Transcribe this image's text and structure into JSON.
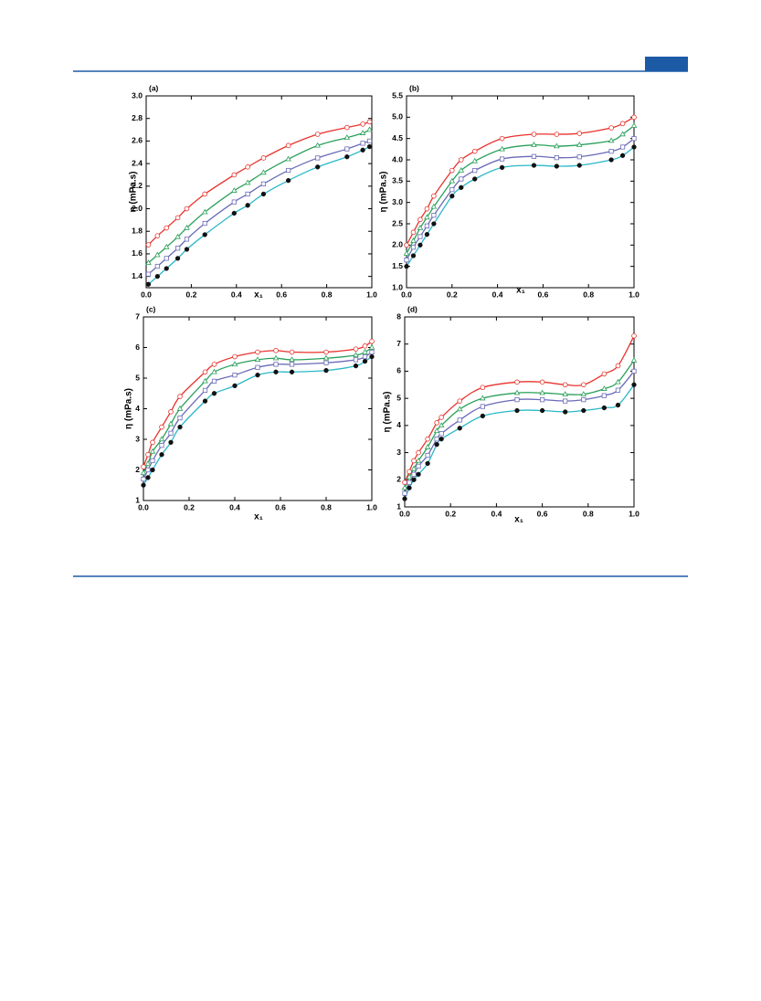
{
  "chart_data": [
    {
      "type": "line",
      "panel": "(a)",
      "xlabel": "x₁",
      "ylabel": "η (mPa.s)",
      "xlim": [
        0,
        1
      ],
      "xticks": [
        {
          "value": 0,
          "label": "0.0"
        },
        0.2,
        0.4,
        0.6,
        0.8,
        {
          "value": 1,
          "label": "1.0"
        }
      ],
      "ylim": [
        1.3,
        3.0
      ],
      "yticks": [
        1.4,
        1.6,
        1.8,
        {
          "value": 2,
          "label": "2.0"
        },
        2.2,
        2.4,
        2.6,
        2.8,
        {
          "value": 3,
          "label": "3.0"
        }
      ],
      "x": [
        0.01,
        0.05,
        0.09,
        0.14,
        0.18,
        0.26,
        0.39,
        0.45,
        0.52,
        0.63,
        0.76,
        0.89,
        0.96,
        0.99
      ],
      "series": [
        {
          "color": "#e8322c",
          "marker": "circle",
          "values": [
            1.68,
            1.76,
            1.83,
            1.92,
            2.0,
            2.13,
            2.3,
            2.37,
            2.45,
            2.56,
            2.66,
            2.72,
            2.75,
            2.77
          ]
        },
        {
          "color": "#2aa05a",
          "marker": "triangle",
          "values": [
            1.52,
            1.59,
            1.66,
            1.75,
            1.83,
            1.97,
            2.16,
            2.23,
            2.32,
            2.44,
            2.56,
            2.63,
            2.67,
            2.7
          ]
        },
        {
          "color": "#6a6ab8",
          "marker": "square",
          "values": [
            1.42,
            1.49,
            1.56,
            1.65,
            1.73,
            1.87,
            2.06,
            2.13,
            2.22,
            2.34,
            2.45,
            2.53,
            2.58,
            2.6
          ]
        },
        {
          "color": "#2ab8c8",
          "marker": "filled-circle",
          "values": [
            1.33,
            1.4,
            1.47,
            1.56,
            1.64,
            1.77,
            1.96,
            2.03,
            2.13,
            2.25,
            2.37,
            2.46,
            2.52,
            2.55
          ]
        }
      ]
    },
    {
      "type": "line",
      "panel": "(b)",
      "xlabel": "x₁",
      "ylabel": "η (mPa.s)",
      "xlim": [
        0,
        1
      ],
      "xticks": [
        {
          "value": 0,
          "label": "0.0"
        },
        0.2,
        0.4,
        0.6,
        0.8,
        {
          "value": 1,
          "label": "1.0"
        }
      ],
      "ylim": [
        1.0,
        5.5
      ],
      "yticks": [
        {
          "value": 1,
          "label": "1.0"
        },
        1.5,
        {
          "value": 2,
          "label": "2.0"
        },
        2.5,
        {
          "value": 3,
          "label": "3.0"
        },
        3.5,
        {
          "value": 4,
          "label": "4.0"
        },
        4.5,
        {
          "value": 5,
          "label": "5.0"
        },
        5.5
      ],
      "x": [
        0,
        0.03,
        0.06,
        0.09,
        0.12,
        0.2,
        0.24,
        0.3,
        0.42,
        0.56,
        0.66,
        0.76,
        0.9,
        0.95,
        1.0
      ],
      "series": [
        {
          "color": "#e8322c",
          "marker": "circle",
          "values": [
            2.0,
            2.3,
            2.6,
            2.85,
            3.15,
            3.75,
            4.0,
            4.2,
            4.5,
            4.6,
            4.6,
            4.62,
            4.75,
            4.85,
            5.0
          ]
        },
        {
          "color": "#2aa05a",
          "marker": "triangle",
          "values": [
            1.8,
            2.1,
            2.4,
            2.65,
            2.9,
            3.5,
            3.75,
            3.97,
            4.25,
            4.35,
            4.32,
            4.35,
            4.45,
            4.6,
            4.8
          ]
        },
        {
          "color": "#6a6ab8",
          "marker": "square",
          "values": [
            1.65,
            1.95,
            2.2,
            2.45,
            2.7,
            3.3,
            3.55,
            3.75,
            4.02,
            4.08,
            4.05,
            4.07,
            4.2,
            4.3,
            4.5
          ]
        },
        {
          "color": "#2ab8c8",
          "marker": "filled-circle",
          "values": [
            1.5,
            1.75,
            2.0,
            2.25,
            2.5,
            3.15,
            3.35,
            3.55,
            3.82,
            3.87,
            3.85,
            3.87,
            4.0,
            4.1,
            4.3
          ]
        }
      ]
    },
    {
      "type": "line",
      "panel": "(c)",
      "xlabel": "x₁",
      "ylabel": "η (mPa.s)",
      "xlim": [
        0,
        1
      ],
      "xticks": [
        {
          "value": 0,
          "label": "0.0"
        },
        0.2,
        0.4,
        0.6,
        0.8,
        {
          "value": 1,
          "label": "1.0"
        }
      ],
      "ylim": [
        1,
        7
      ],
      "yticks": [
        1,
        2,
        3,
        4,
        5,
        6,
        7
      ],
      "x": [
        0.0,
        0.02,
        0.04,
        0.08,
        0.12,
        0.16,
        0.27,
        0.31,
        0.4,
        0.5,
        0.58,
        0.65,
        0.8,
        0.93,
        0.97,
        1.0
      ],
      "series": [
        {
          "color": "#e8322c",
          "marker": "circle",
          "values": [
            2.1,
            2.5,
            2.9,
            3.4,
            3.9,
            4.4,
            5.2,
            5.45,
            5.7,
            5.85,
            5.9,
            5.85,
            5.85,
            5.95,
            6.05,
            6.2
          ]
        },
        {
          "color": "#2aa05a",
          "marker": "triangle",
          "values": [
            1.9,
            2.2,
            2.6,
            3.0,
            3.5,
            4.0,
            4.9,
            5.2,
            5.45,
            5.6,
            5.65,
            5.6,
            5.65,
            5.75,
            5.85,
            6.0
          ]
        },
        {
          "color": "#6a6ab8",
          "marker": "square",
          "values": [
            1.7,
            2.0,
            2.3,
            2.8,
            3.2,
            3.7,
            4.6,
            4.9,
            5.1,
            5.35,
            5.45,
            5.45,
            5.5,
            5.6,
            5.7,
            5.85
          ]
        },
        {
          "color": "#2ab8c8",
          "marker": "filled-circle",
          "values": [
            1.5,
            1.75,
            2.0,
            2.5,
            2.9,
            3.4,
            4.25,
            4.5,
            4.75,
            5.1,
            5.2,
            5.2,
            5.25,
            5.4,
            5.55,
            5.7
          ]
        }
      ]
    },
    {
      "type": "line",
      "panel": "(d)",
      "xlabel": "x₁",
      "ylabel": "η (mPa.s)",
      "xlim": [
        0,
        1
      ],
      "xticks": [
        {
          "value": 0,
          "label": "0.0"
        },
        0.2,
        0.4,
        0.6,
        0.8,
        {
          "value": 1,
          "label": "1.0"
        }
      ],
      "ylim": [
        1,
        8
      ],
      "yticks": [
        1,
        2,
        3,
        4,
        5,
        6,
        7,
        8
      ],
      "x": [
        0,
        0.02,
        0.04,
        0.06,
        0.1,
        0.14,
        0.16,
        0.24,
        0.34,
        0.49,
        0.6,
        0.7,
        0.78,
        0.87,
        0.93,
        1.0
      ],
      "series": [
        {
          "color": "#e8322c",
          "marker": "circle",
          "values": [
            1.9,
            2.3,
            2.7,
            3.0,
            3.5,
            4.1,
            4.3,
            4.9,
            5.4,
            5.6,
            5.6,
            5.5,
            5.5,
            5.9,
            6.2,
            7.3
          ]
        },
        {
          "color": "#2aa05a",
          "marker": "triangle",
          "values": [
            1.7,
            2.1,
            2.4,
            2.7,
            3.2,
            3.8,
            4.0,
            4.6,
            5.0,
            5.2,
            5.2,
            5.15,
            5.15,
            5.35,
            5.6,
            6.4
          ]
        },
        {
          "color": "#6a6ab8",
          "marker": "square",
          "values": [
            1.5,
            1.9,
            2.2,
            2.5,
            2.9,
            3.5,
            3.7,
            4.2,
            4.7,
            4.95,
            4.95,
            4.9,
            4.95,
            5.1,
            5.3,
            6.0
          ]
        },
        {
          "color": "#2ab8c8",
          "marker": "filled-circle",
          "values": [
            1.3,
            1.7,
            2.0,
            2.2,
            2.6,
            3.3,
            3.5,
            3.9,
            4.35,
            4.55,
            4.55,
            4.5,
            4.55,
            4.65,
            4.75,
            5.5
          ]
        }
      ]
    }
  ]
}
